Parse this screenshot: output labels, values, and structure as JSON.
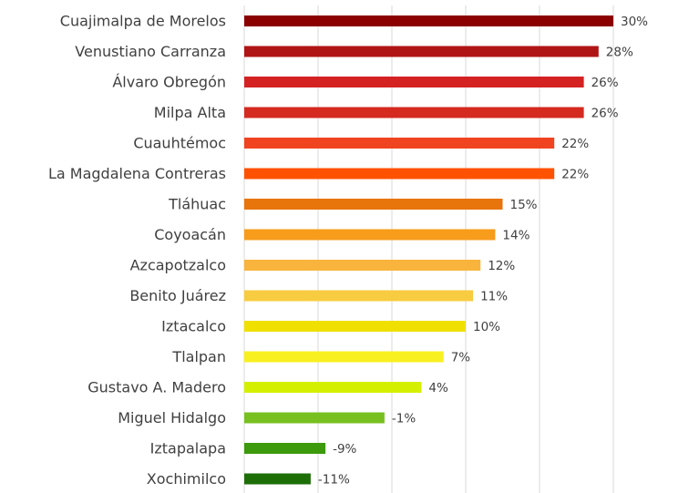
{
  "chart_data": {
    "type": "hbar",
    "categories": [
      "Cuajimalpa de Morelos",
      "Venustiano Carranza",
      "Álvaro Obregón",
      "Milpa Alta",
      "Cuauhtémoc",
      "La Magdalena Contreras",
      "Tláhuac",
      "Coyoacán",
      "Azcapotzalco",
      "Benito Juárez",
      "Iztacalco",
      "Tlalpan",
      "Gustavo A. Madero",
      "Miguel Hidalgo",
      "Iztapalapa",
      "Xochimilco"
    ],
    "values": [
      30,
      28,
      26,
      26,
      22,
      22,
      15,
      14,
      12,
      11,
      10,
      7,
      4,
      -1,
      -9,
      -11
    ],
    "value_labels": [
      "30%",
      "28%",
      "26%",
      "26%",
      "22%",
      "22%",
      "15%",
      "14%",
      "12%",
      "11%",
      "10%",
      "7%",
      "4%",
      "-1%",
      "-9%",
      "-11%"
    ],
    "colors": [
      "#8b0000",
      "#b01515",
      "#d42222",
      "#d42a20",
      "#f04420",
      "#ff5200",
      "#e8740c",
      "#f89c1c",
      "#f8b43c",
      "#f8cc40",
      "#f0e000",
      "#f8f020",
      "#d4f000",
      "#78c020",
      "#3c9a0c",
      "#1e6e08"
    ],
    "xlim": [
      -20,
      30
    ],
    "xticks": [
      -20,
      -10,
      0,
      10,
      20,
      30
    ],
    "grid": true
  }
}
